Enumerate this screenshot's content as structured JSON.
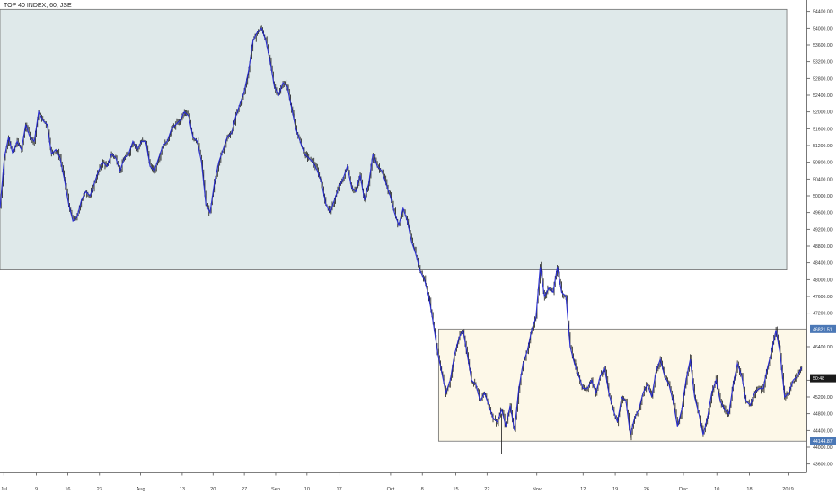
{
  "chart_data": {
    "type": "candlestick",
    "title": "TOP 40 INDEX, 60, JSE",
    "ylim": [
      43400,
      54500
    ],
    "y_ticks": [
      {
        "value": 54400,
        "label": "54400.00"
      },
      {
        "value": 54000,
        "label": "54000.00"
      },
      {
        "value": 53600,
        "label": "53600.00"
      },
      {
        "value": 53200,
        "label": "53200.00"
      },
      {
        "value": 52800,
        "label": "52800.00"
      },
      {
        "value": 52400,
        "label": "52400.00"
      },
      {
        "value": 52000,
        "label": "52000.00"
      },
      {
        "value": 51600,
        "label": "51600.00"
      },
      {
        "value": 51200,
        "label": "51200.00"
      },
      {
        "value": 50800,
        "label": "50800.00"
      },
      {
        "value": 50400,
        "label": "50400.00"
      },
      {
        "value": 50000,
        "label": "50000.00"
      },
      {
        "value": 49600,
        "label": "49600.00"
      },
      {
        "value": 49200,
        "label": "49200.00"
      },
      {
        "value": 48800,
        "label": "48800.00"
      },
      {
        "value": 48400,
        "label": "48400.00"
      },
      {
        "value": 48000,
        "label": "48000.00"
      },
      {
        "value": 47600,
        "label": "47600.00"
      },
      {
        "value": 47200,
        "label": "47200.00"
      },
      {
        "value": 46400,
        "label": "46400.00"
      },
      {
        "value": 45600,
        "label": "45600.00"
      },
      {
        "value": 45200,
        "label": "45200.00"
      },
      {
        "value": 44800,
        "label": "44800.00"
      },
      {
        "value": 44400,
        "label": "44400.00"
      },
      {
        "value": 44000,
        "label": "44000.00"
      },
      {
        "value": 43600,
        "label": "43600.00"
      }
    ],
    "x_ticks": [
      {
        "label": "Jul",
        "x": 0.9
      },
      {
        "label": "9",
        "x": 8.5
      },
      {
        "label": "16",
        "x": 15.8
      },
      {
        "label": "23",
        "x": 23.2
      },
      {
        "label": "Aug",
        "x": 32.8
      },
      {
        "label": "13",
        "x": 42.5
      },
      {
        "label": "20",
        "x": 49.7
      },
      {
        "label": "27",
        "x": 57.0
      },
      {
        "label": "Sep",
        "x": 64.3
      },
      {
        "label": "10",
        "x": 71.6
      },
      {
        "label": "17",
        "x": 79.1
      },
      {
        "label": "Oct",
        "x": 91.1
      },
      {
        "label": "8",
        "x": 98.5
      },
      {
        "label": "15",
        "x": 106.3
      },
      {
        "label": "22",
        "x": 113.6
      },
      {
        "label": "Nov",
        "x": 125.2
      },
      {
        "label": "12",
        "x": 136.0
      },
      {
        "label": "19",
        "x": 143.5
      },
      {
        "label": "26",
        "x": 150.8
      },
      {
        "label": "Dec",
        "x": 159.4
      },
      {
        "label": "10",
        "x": 167.2
      },
      {
        "label": "18",
        "x": 174.8
      },
      {
        "label": "2019",
        "x": 183.8
      }
    ],
    "x_range": [
      0,
      188.1
    ],
    "price_path": [
      [
        0,
        49700
      ],
      [
        1,
        50900
      ],
      [
        2,
        51400
      ],
      [
        3,
        51000
      ],
      [
        4,
        51300
      ],
      [
        5,
        51100
      ],
      [
        6,
        51700
      ],
      [
        7,
        51400
      ],
      [
        8,
        51300
      ],
      [
        9,
        52000
      ],
      [
        10,
        51800
      ],
      [
        11,
        51700
      ],
      [
        12,
        51000
      ],
      [
        13,
        51100
      ],
      [
        14,
        50900
      ],
      [
        15,
        50400
      ],
      [
        16,
        49800
      ],
      [
        17,
        49400
      ],
      [
        18,
        49500
      ],
      [
        19,
        49900
      ],
      [
        20,
        50100
      ],
      [
        21,
        50000
      ],
      [
        22,
        50300
      ],
      [
        23,
        50600
      ],
      [
        24,
        50800
      ],
      [
        25,
        50700
      ],
      [
        26,
        51000
      ],
      [
        27,
        50900
      ],
      [
        28,
        50600
      ],
      [
        29,
        50900
      ],
      [
        30,
        51000
      ],
      [
        31,
        51300
      ],
      [
        32,
        51100
      ],
      [
        33,
        51300
      ],
      [
        34,
        51300
      ],
      [
        35,
        50700
      ],
      [
        36,
        50600
      ],
      [
        37,
        50900
      ],
      [
        38,
        51200
      ],
      [
        39,
        51300
      ],
      [
        40,
        51600
      ],
      [
        41,
        51700
      ],
      [
        42,
        51800
      ],
      [
        43,
        52000
      ],
      [
        44,
        51900
      ],
      [
        45,
        51400
      ],
      [
        46,
        51300
      ],
      [
        47,
        50800
      ],
      [
        48,
        49800
      ],
      [
        49,
        49600
      ],
      [
        50,
        50300
      ],
      [
        51,
        50800
      ],
      [
        52,
        51100
      ],
      [
        53,
        51400
      ],
      [
        54,
        51500
      ],
      [
        55,
        51900
      ],
      [
        56,
        52200
      ],
      [
        57,
        52500
      ],
      [
        58,
        53000
      ],
      [
        59,
        53700
      ],
      [
        60,
        53900
      ],
      [
        61,
        54000
      ],
      [
        62,
        53700
      ],
      [
        63,
        53200
      ],
      [
        64,
        52600
      ],
      [
        65,
        52400
      ],
      [
        66,
        52700
      ],
      [
        67,
        52600
      ],
      [
        68,
        52100
      ],
      [
        69,
        51600
      ],
      [
        70,
        51300
      ],
      [
        71,
        51000
      ],
      [
        72,
        50900
      ],
      [
        73,
        50800
      ],
      [
        74,
        50600
      ],
      [
        75,
        50300
      ],
      [
        76,
        49800
      ],
      [
        77,
        49600
      ],
      [
        78,
        49900
      ],
      [
        79,
        50200
      ],
      [
        80,
        50400
      ],
      [
        81,
        50700
      ],
      [
        82,
        50200
      ],
      [
        83,
        50100
      ],
      [
        84,
        50500
      ],
      [
        85,
        49900
      ],
      [
        86,
        50300
      ],
      [
        87,
        51000
      ],
      [
        88,
        50700
      ],
      [
        89,
        50600
      ],
      [
        90,
        50300
      ],
      [
        91,
        50000
      ],
      [
        92,
        49600
      ],
      [
        93,
        49300
      ],
      [
        94,
        49700
      ],
      [
        95,
        49400
      ],
      [
        96,
        48900
      ],
      [
        97,
        48600
      ],
      [
        98,
        48200
      ],
      [
        99,
        48000
      ],
      [
        100,
        47600
      ],
      [
        101,
        47000
      ],
      [
        102,
        46300
      ],
      [
        103,
        45800
      ],
      [
        104,
        45300
      ],
      [
        105,
        45600
      ],
      [
        106,
        46200
      ],
      [
        107,
        46600
      ],
      [
        108,
        46800
      ],
      [
        109,
        46200
      ],
      [
        110,
        45600
      ],
      [
        111,
        45500
      ],
      [
        112,
        45100
      ],
      [
        113,
        45300
      ],
      [
        114,
        45000
      ],
      [
        115,
        44700
      ],
      [
        116,
        44600
      ],
      [
        117,
        44900
      ],
      [
        118,
        44500
      ],
      [
        119,
        45000
      ],
      [
        120,
        44400
      ],
      [
        121,
        45400
      ],
      [
        122,
        46000
      ],
      [
        123,
        46300
      ],
      [
        124,
        46800
      ],
      [
        125,
        47100
      ],
      [
        126,
        48300
      ],
      [
        127,
        47600
      ],
      [
        128,
        47800
      ],
      [
        129,
        47700
      ],
      [
        130,
        48300
      ],
      [
        131,
        47700
      ],
      [
        132,
        47600
      ],
      [
        133,
        46400
      ],
      [
        134,
        46000
      ],
      [
        135,
        45700
      ],
      [
        136,
        45400
      ],
      [
        137,
        45400
      ],
      [
        138,
        45600
      ],
      [
        139,
        45300
      ],
      [
        140,
        45700
      ],
      [
        141,
        45900
      ],
      [
        142,
        45300
      ],
      [
        143,
        44900
      ],
      [
        144,
        44600
      ],
      [
        145,
        45200
      ],
      [
        146,
        45100
      ],
      [
        147,
        44300
      ],
      [
        148,
        44700
      ],
      [
        149,
        44900
      ],
      [
        150,
        45300
      ],
      [
        151,
        45500
      ],
      [
        152,
        45200
      ],
      [
        153,
        45800
      ],
      [
        154,
        46100
      ],
      [
        155,
        45700
      ],
      [
        156,
        45500
      ],
      [
        157,
        45100
      ],
      [
        158,
        44500
      ],
      [
        159,
        44900
      ],
      [
        160,
        45600
      ],
      [
        161,
        46100
      ],
      [
        162,
        45200
      ],
      [
        163,
        44800
      ],
      [
        164,
        44300
      ],
      [
        165,
        44700
      ],
      [
        166,
        45300
      ],
      [
        167,
        45600
      ],
      [
        168,
        45100
      ],
      [
        169,
        44900
      ],
      [
        170,
        44800
      ],
      [
        171,
        45500
      ],
      [
        172,
        46000
      ],
      [
        173,
        45700
      ],
      [
        174,
        45100
      ],
      [
        175,
        45000
      ],
      [
        176,
        45300
      ],
      [
        177,
        45400
      ],
      [
        178,
        45400
      ],
      [
        179,
        45900
      ],
      [
        180,
        46300
      ],
      [
        181,
        46800
      ],
      [
        182,
        46200
      ],
      [
        183,
        45200
      ],
      [
        184,
        45300
      ],
      [
        185,
        45600
      ],
      [
        186,
        45700
      ],
      [
        187,
        45900
      ]
    ],
    "zones": [
      {
        "name": "upper-supply-zone",
        "x_start": 0,
        "x_end": 183.5,
        "y_low": 48230,
        "y_high": 54450,
        "fill": "#dfe9ea",
        "stroke": "#6f6f6f"
      },
      {
        "name": "lower-range-zone",
        "x_start": 102.3,
        "x_end": 188.1,
        "y_low": 44144.87,
        "y_high": 46821.51,
        "fill": "#fdf8e8",
        "stroke": "#6f6f6f"
      }
    ],
    "price_labels": [
      {
        "value": 46821.51,
        "label": "46821.51",
        "color": "#4b78b6"
      },
      {
        "value": 45648,
        "label": "50:48",
        "color": "#1a1a1a"
      },
      {
        "value": 44144.87,
        "label": "44144.87",
        "color": "#4b78b6"
      }
    ],
    "candle_color": "#1a1a1a",
    "line_color": "#2a2ed0",
    "grid": false
  }
}
